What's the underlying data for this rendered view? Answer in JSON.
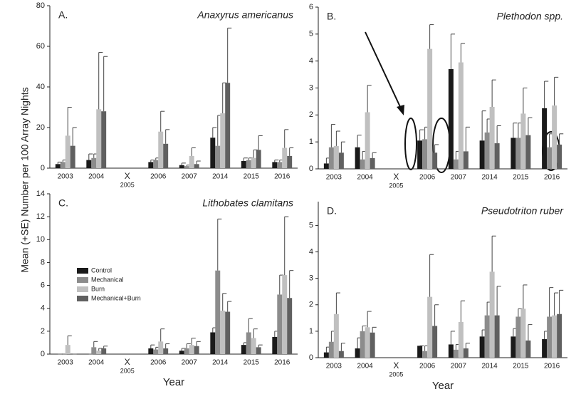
{
  "chart_data": [
    {
      "type": "bar",
      "panel": "A.",
      "title": "Anaxyrus americanus",
      "ylabel": "Mean (+SE) Number per 100 Array Nights",
      "categories": [
        "2003",
        "2004",
        "2005",
        "2006",
        "2007",
        "2014",
        "2015",
        "2016"
      ],
      "gap_marker": "X",
      "ylim": [
        0,
        80
      ],
      "yticks": [
        0,
        20,
        40,
        60,
        80
      ],
      "series": [
        {
          "color": "#1a1a1a",
          "values": [
            2,
            4,
            null,
            3,
            1.5,
            15,
            3.5,
            3
          ],
          "errors": [
            1,
            3,
            null,
            1,
            1,
            5,
            1.5,
            1
          ]
        },
        {
          "color": "#8c8c8c",
          "values": [
            3,
            5,
            null,
            4,
            1,
            11,
            4,
            3
          ],
          "errors": [
            1,
            2,
            null,
            1,
            0.5,
            15,
            1,
            1
          ]
        },
        {
          "color": "#c0c0c0",
          "values": [
            16,
            29,
            null,
            18,
            6,
            27,
            5,
            10
          ],
          "errors": [
            14,
            28,
            null,
            10,
            4,
            15,
            4,
            9
          ]
        },
        {
          "color": "#606060",
          "values": [
            11,
            28,
            null,
            12,
            2,
            42,
            9,
            6
          ],
          "errors": [
            9,
            27,
            null,
            7,
            1.5,
            27,
            7,
            4
          ]
        }
      ]
    },
    {
      "type": "bar",
      "panel": "B.",
      "title": "Plethodon spp.",
      "categories": [
        "2003",
        "2004",
        "2005",
        "2006",
        "2007",
        "2014",
        "2015",
        "2016"
      ],
      "gap_marker": "X",
      "ylim": [
        0,
        6
      ],
      "yticks": [
        0,
        1,
        2,
        3,
        4,
        5,
        6
      ],
      "series": [
        {
          "color": "#1a1a1a",
          "values": [
            0.2,
            0.8,
            null,
            1.05,
            3.7,
            1.05,
            1.15,
            2.25
          ],
          "errors": [
            0.2,
            0.45,
            null,
            0.4,
            1.3,
            1.1,
            0.55,
            1.0
          ]
        },
        {
          "color": "#8c8c8c",
          "values": [
            0.8,
            0.35,
            null,
            1.1,
            0.35,
            1.35,
            1.15,
            0.8
          ],
          "errors": [
            0.85,
            0.3,
            null,
            0.45,
            0.3,
            0.5,
            0.55,
            0.5
          ]
        },
        {
          "color": "#c0c0c0",
          "values": [
            0.85,
            2.1,
            null,
            4.45,
            3.95,
            2.3,
            2.05,
            2.35
          ],
          "errors": [
            0.55,
            1.0,
            null,
            0.9,
            0.7,
            1.0,
            0.95,
            1.05
          ]
        },
        {
          "color": "#606060",
          "values": [
            0.6,
            0.4,
            null,
            0.6,
            0.65,
            0.95,
            1.25,
            0.9
          ],
          "errors": [
            0.4,
            0.2,
            null,
            0.3,
            0.9,
            0.65,
            0.65,
            0.4
          ]
        }
      ]
    },
    {
      "type": "bar",
      "panel": "C.",
      "title": "Lithobates clamitans",
      "xlabel": "Year",
      "categories": [
        "2003",
        "2004",
        "2005",
        "2006",
        "2007",
        "2014",
        "2015",
        "2016"
      ],
      "gap_marker": "X",
      "ylim": [
        0,
        14
      ],
      "yticks": [
        0,
        2,
        4,
        6,
        8,
        10,
        12,
        14
      ],
      "legend": true,
      "series": [
        {
          "name": "Control",
          "color": "#1a1a1a",
          "values": [
            0,
            0,
            null,
            0.5,
            0.3,
            1.9,
            0.8,
            1.5
          ],
          "errors": [
            0,
            0,
            null,
            0.3,
            0.2,
            0.4,
            0.2,
            0.5
          ]
        },
        {
          "name": "Mechanical",
          "color": "#8c8c8c",
          "values": [
            0,
            0.6,
            null,
            0.4,
            0.5,
            7.3,
            1.9,
            5.2
          ],
          "errors": [
            0,
            0.5,
            null,
            0.2,
            0.4,
            4.5,
            1.2,
            1.7
          ]
        },
        {
          "name": "Burn",
          "color": "#c0c0c0",
          "values": [
            0.8,
            0.3,
            null,
            1.1,
            0.8,
            3.8,
            1.4,
            6.9
          ],
          "errors": [
            0.8,
            0.2,
            null,
            1.1,
            0.6,
            1.5,
            0.8,
            5.1
          ]
        },
        {
          "name": "Mechanical+Burn",
          "color": "#606060",
          "values": [
            0,
            0.5,
            null,
            0.5,
            0.7,
            3.7,
            0.6,
            4.9
          ],
          "errors": [
            0,
            0.2,
            null,
            0.4,
            0.4,
            0.9,
            0.2,
            2.4
          ]
        }
      ]
    },
    {
      "type": "bar",
      "panel": "D.",
      "title": "Pseudotriton ruber",
      "xlabel": "Year",
      "categories": [
        "2003",
        "2004",
        "2005",
        "2006",
        "2007",
        "2014",
        "2015",
        "2016"
      ],
      "gap_marker": "X",
      "ylim": [
        0,
        5.9
      ],
      "yticks": [
        0,
        1,
        2,
        3,
        4,
        5
      ],
      "series": [
        {
          "color": "#1a1a1a",
          "values": [
            0.2,
            0.35,
            null,
            0.45,
            0.5,
            0.8,
            0.8,
            0.7
          ],
          "errors": [
            0.2,
            0.4,
            null,
            0,
            0.5,
            0.25,
            0.3,
            0.3
          ]
        },
        {
          "color": "#8c8c8c",
          "values": [
            0.6,
            1.0,
            null,
            0.25,
            0.3,
            1.6,
            1.55,
            1.55
          ],
          "errors": [
            0.4,
            0.2,
            null,
            0.2,
            0.2,
            0.5,
            0.3,
            1.1
          ]
        },
        {
          "color": "#c0c0c0",
          "values": [
            1.65,
            1.15,
            null,
            2.3,
            1.35,
            3.25,
            1.85,
            1.6
          ],
          "errors": [
            0.8,
            0.6,
            null,
            1.6,
            0.8,
            1.35,
            0.9,
            0.85
          ]
        },
        {
          "color": "#606060",
          "values": [
            0.25,
            0.95,
            null,
            1.2,
            0.35,
            1.6,
            0.65,
            1.65
          ],
          "errors": [
            0.3,
            0.2,
            null,
            0.8,
            0.2,
            1.1,
            0.6,
            0.9
          ]
        }
      ]
    }
  ]
}
